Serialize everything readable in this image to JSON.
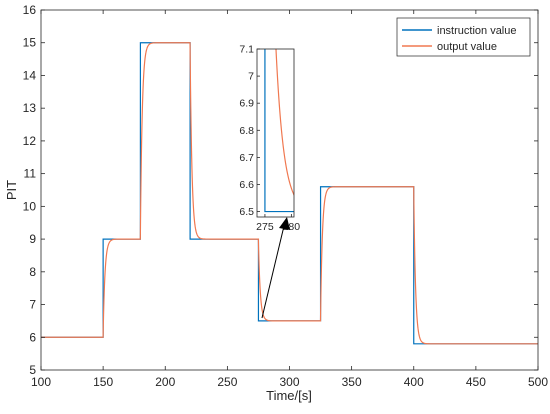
{
  "chart_data": {
    "type": "line",
    "xlabel": "Time/[s]",
    "ylabel": "PIT",
    "xlim": [
      100,
      500
    ],
    "ylim": [
      5,
      16
    ],
    "xticks": [
      100,
      150,
      200,
      250,
      300,
      350,
      400,
      450,
      500
    ],
    "yticks": [
      5,
      6,
      7,
      8,
      9,
      10,
      11,
      12,
      13,
      14,
      15,
      16
    ],
    "legend_position": "top-right",
    "series": [
      {
        "name": "instruction value",
        "color": "#0072BD",
        "steps": [
          {
            "t": 100,
            "v": 6.0
          },
          {
            "t": 150,
            "v": 9.0
          },
          {
            "t": 180,
            "v": 15.0
          },
          {
            "t": 220,
            "v": 9.0
          },
          {
            "t": 275,
            "v": 6.5
          },
          {
            "t": 325,
            "v": 10.6
          },
          {
            "t": 400,
            "v": 5.8
          }
        ],
        "end": 500
      },
      {
        "name": "output value",
        "color": "#F07850",
        "type": "first-order-response",
        "time_constant": 1.5,
        "start_value": 6.0
      }
    ],
    "inset": {
      "xlim": [
        273.5,
        280.5
      ],
      "ylim": [
        6.48,
        7.1
      ],
      "xticks": [
        275,
        280
      ],
      "yticks": [
        6.5,
        6.6,
        6.7,
        6.8,
        6.9,
        7.0,
        7.1
      ],
      "ytick_labels": [
        "6.5",
        "6.6",
        "6.7",
        "6.8",
        "6.9",
        "7",
        "7.1"
      ],
      "source_region": {
        "x": 276,
        "y": 6.5
      }
    }
  }
}
